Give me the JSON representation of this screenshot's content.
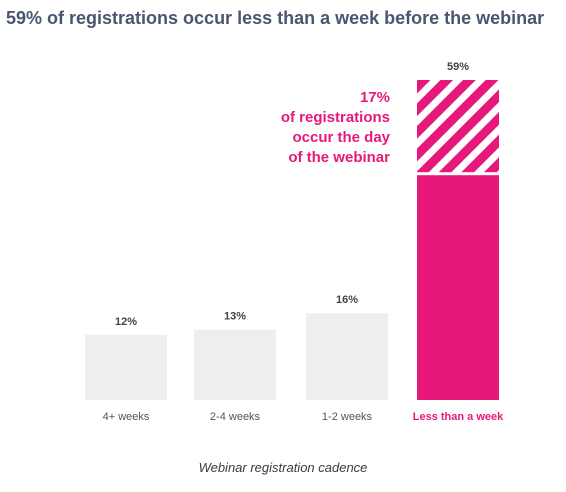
{
  "colors": {
    "bar": "#eeeeef",
    "accent": "#e6197a",
    "label_gray": "#555555",
    "value_gray": "#444444"
  },
  "chart_data": {
    "type": "bar",
    "title": "59% of registrations occur less than a week before the webinar",
    "xlabel": "Webinar registration cadence",
    "ylabel": "",
    "categories": [
      "4+ weeks",
      "2-4 weeks",
      "1-2 weeks",
      "Less than a week"
    ],
    "values": [
      12,
      13,
      16,
      59
    ],
    "value_labels": [
      "12%",
      "13%",
      "16%",
      "59%"
    ],
    "highlight_index": 3,
    "highlight_segment": {
      "value": 17,
      "pattern": "diagonal-stripes"
    },
    "ylim": [
      0,
      59
    ],
    "grid": false,
    "annotation": {
      "value": "17%",
      "lines": [
        "of registrations",
        "occur the day",
        "of the webinar"
      ]
    }
  }
}
